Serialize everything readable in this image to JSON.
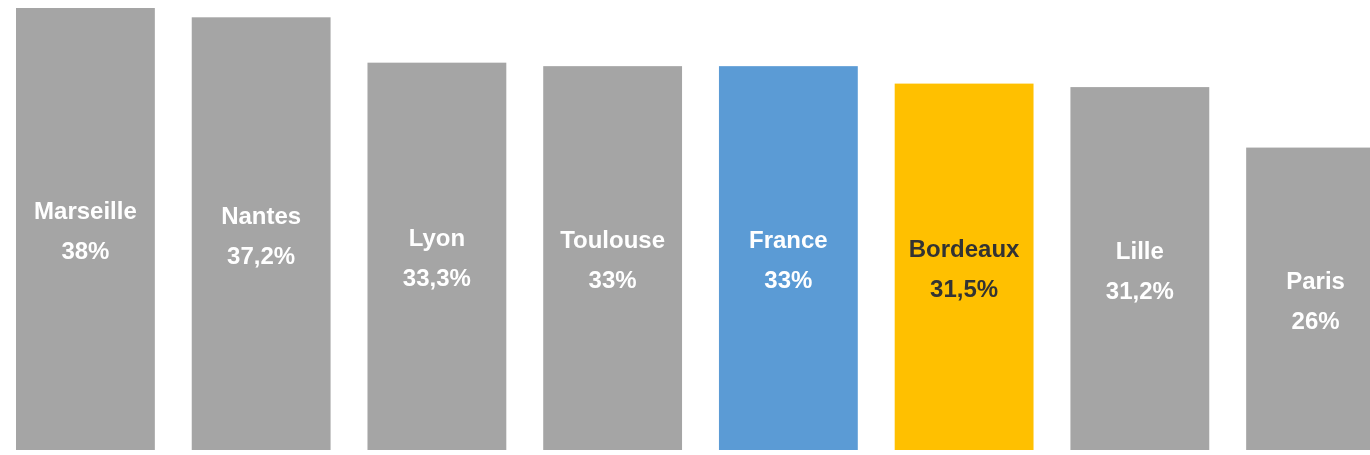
{
  "chart_data": {
    "type": "bar",
    "categories": [
      "Marseille",
      "Nantes",
      "Lyon",
      "Toulouse",
      "France",
      "Bordeaux",
      "Lille",
      "Paris"
    ],
    "values": [
      38,
      37.2,
      33.3,
      33,
      33,
      31.5,
      31.2,
      26
    ],
    "value_labels": [
      "38%",
      "37,2%",
      "33,3%",
      "33%",
      "33%",
      "31,5%",
      "31,2%",
      "26%"
    ],
    "colors": [
      "#a5a5a5",
      "#a5a5a5",
      "#a5a5a5",
      "#a5a5a5",
      "#5b9bd5",
      "#ffc000",
      "#a5a5a5",
      "#a5a5a5"
    ],
    "ylim": [
      0,
      38
    ]
  }
}
